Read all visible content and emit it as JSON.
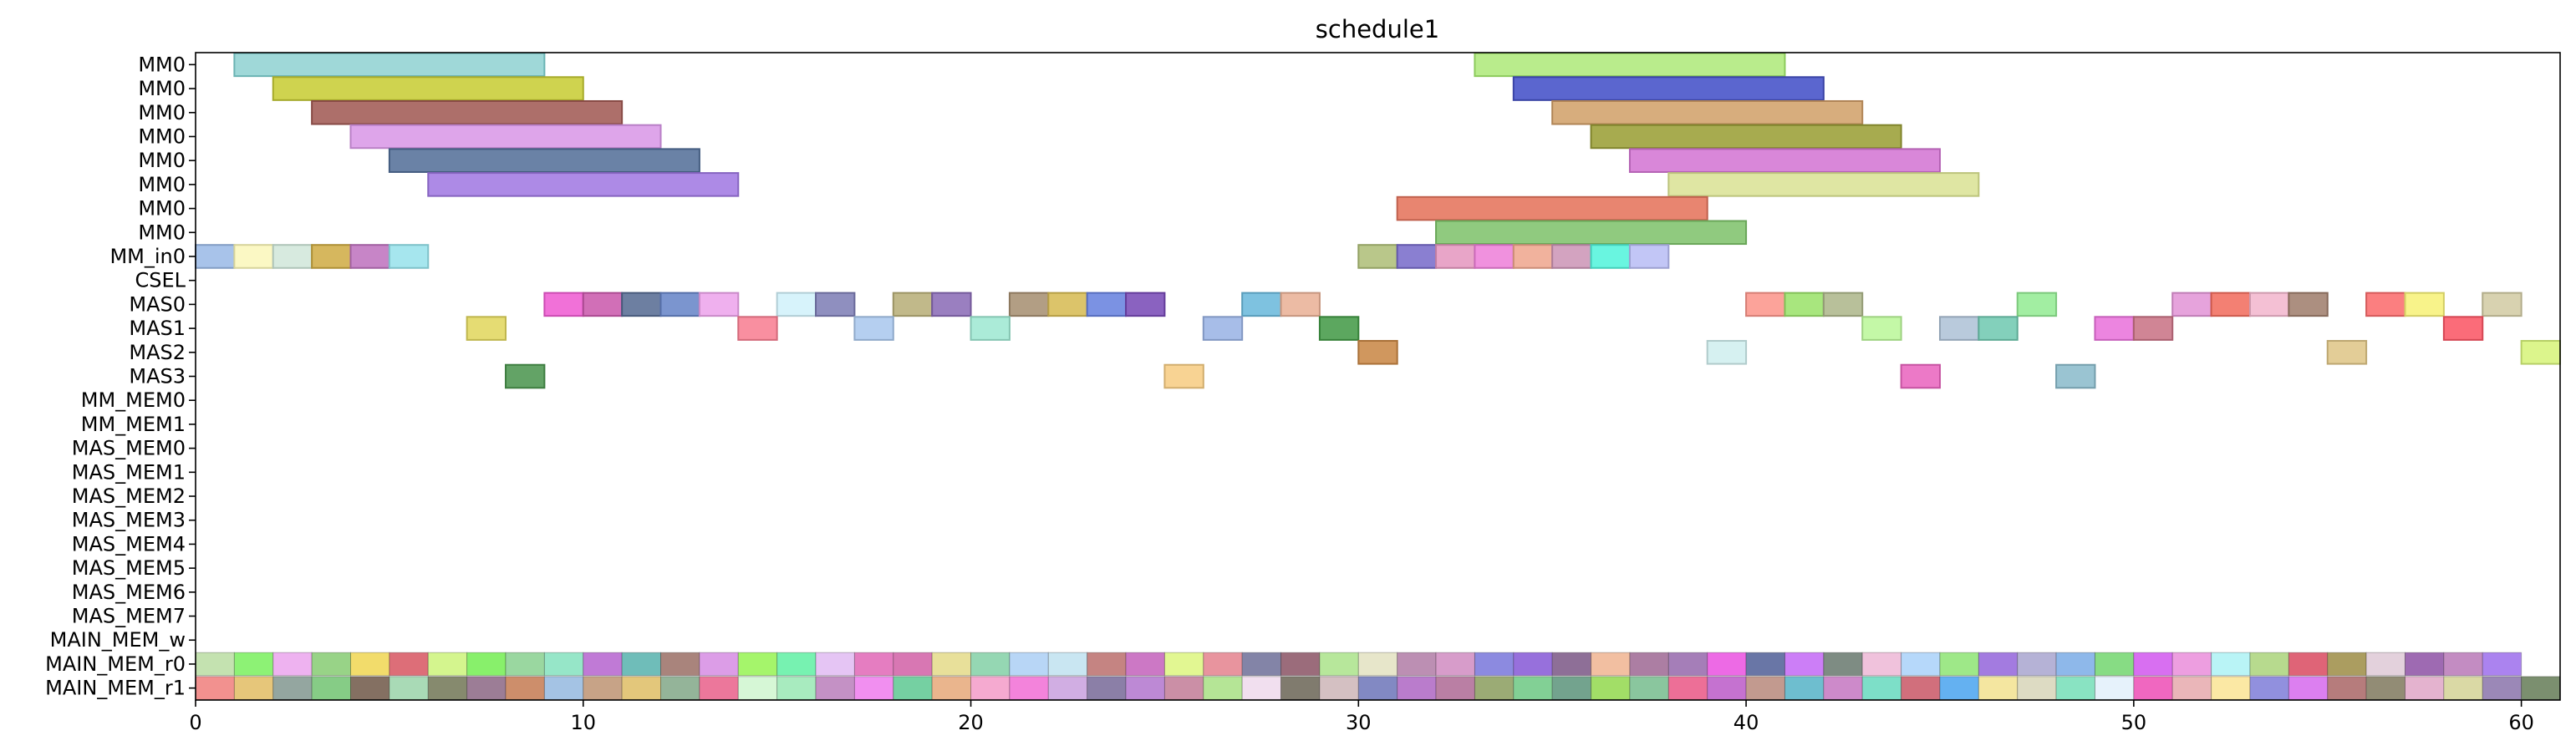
{
  "chart_data": {
    "type": "gantt",
    "title": "schedule1",
    "xlabel": "",
    "ylabel": "",
    "xlim": [
      0,
      61
    ],
    "x_ticks": [
      "0",
      "10",
      "20",
      "30",
      "40",
      "50",
      "60"
    ],
    "rows": [
      "MM0",
      "MM0",
      "MM0",
      "MM0",
      "MM0",
      "MM0",
      "MM0",
      "MM0",
      "MM_in0",
      "CSEL",
      "MAS0",
      "MAS1",
      "MAS2",
      "MAS3",
      "MM_MEM0",
      "MM_MEM1",
      "MAS_MEM0",
      "MAS_MEM1",
      "MAS_MEM2",
      "MAS_MEM3",
      "MAS_MEM4",
      "MAS_MEM5",
      "MAS_MEM6",
      "MAS_MEM7",
      "MAIN_MEM_w",
      "MAIN_MEM_r0",
      "MAIN_MEM_r1"
    ],
    "grid": false,
    "legend": "none",
    "tasks": [
      {
        "row": 0,
        "start": 1,
        "end": 9,
        "color": "#9fd8d8",
        "edge": "#6ab3b3"
      },
      {
        "row": 0,
        "start": 33,
        "end": 41,
        "color": "#b9ec8c",
        "edge": "#8ccb5c"
      },
      {
        "row": 1,
        "start": 2,
        "end": 10,
        "color": "#cfd34f",
        "edge": "#a6aa2a"
      },
      {
        "row": 1,
        "start": 34,
        "end": 42,
        "color": "#5b66cf",
        "edge": "#3a44a6"
      },
      {
        "row": 2,
        "start": 3,
        "end": 11,
        "color": "#ad6f6a",
        "edge": "#874a45"
      },
      {
        "row": 2,
        "start": 35,
        "end": 43,
        "color": "#d7ad7d",
        "edge": "#b08455"
      },
      {
        "row": 3,
        "start": 4,
        "end": 12,
        "color": "#dea5ea",
        "edge": "#b97fc6"
      },
      {
        "row": 3,
        "start": 36,
        "end": 44,
        "color": "#a7ab4f",
        "edge": "#80842c"
      },
      {
        "row": 4,
        "start": 5,
        "end": 13,
        "color": "#6a82a6",
        "edge": "#435c80"
      },
      {
        "row": 4,
        "start": 37,
        "end": 45,
        "color": "#d987d9",
        "edge": "#b462b4"
      },
      {
        "row": 5,
        "start": 6,
        "end": 14,
        "color": "#ad8ae6",
        "edge": "#8664c0"
      },
      {
        "row": 5,
        "start": 38,
        "end": 46,
        "color": "#dfe6a3",
        "edge": "#bcc47c"
      },
      {
        "row": 6,
        "start": 31,
        "end": 39,
        "color": "#e88570",
        "edge": "#c0604d"
      },
      {
        "row": 7,
        "start": 32,
        "end": 40,
        "color": "#90ca7f",
        "edge": "#69a658"
      },
      {
        "row": 8,
        "start": 0,
        "end": 1,
        "color": "#a8c3ea",
        "edge": "#829dc4"
      },
      {
        "row": 8,
        "start": 1,
        "end": 2,
        "color": "#fbf8c4",
        "edge": "#d6d39b"
      },
      {
        "row": 8,
        "start": 2,
        "end": 3,
        "color": "#d7eadf",
        "edge": "#afc4b8"
      },
      {
        "row": 8,
        "start": 3,
        "end": 4,
        "color": "#d6b75e",
        "edge": "#ae9036"
      },
      {
        "row": 8,
        "start": 4,
        "end": 5,
        "color": "#c785c7",
        "edge": "#a160a1"
      },
      {
        "row": 8,
        "start": 5,
        "end": 6,
        "color": "#a6e6ee",
        "edge": "#7ec1c9"
      },
      {
        "row": 8,
        "start": 30,
        "end": 31,
        "color": "#b9c78a",
        "edge": "#93a164"
      },
      {
        "row": 8,
        "start": 31,
        "end": 32,
        "color": "#8a7fd1",
        "edge": "#6459ab"
      },
      {
        "row": 8,
        "start": 32,
        "end": 33,
        "color": "#e8a5c8",
        "edge": "#c27fa2"
      },
      {
        "row": 8,
        "start": 33,
        "end": 34,
        "color": "#f091de",
        "edge": "#ca6bb8"
      },
      {
        "row": 8,
        "start": 34,
        "end": 35,
        "color": "#f1b29d",
        "edge": "#cb8c77"
      },
      {
        "row": 8,
        "start": 35,
        "end": 36,
        "color": "#d3a3c0",
        "edge": "#ad7d9a"
      },
      {
        "row": 8,
        "start": 36,
        "end": 37,
        "color": "#69f5e0",
        "edge": "#43cfba"
      },
      {
        "row": 8,
        "start": 37,
        "end": 38,
        "color": "#c2c6f6",
        "edge": "#9ca0d0"
      },
      {
        "row": 10,
        "start": 9,
        "end": 10,
        "color": "#f171d8",
        "edge": "#cb4bb2"
      },
      {
        "row": 10,
        "start": 10,
        "end": 11,
        "color": "#d16fb7",
        "edge": "#ab4991"
      },
      {
        "row": 10,
        "start": 11,
        "end": 12,
        "color": "#6d7fa1",
        "edge": "#47597b"
      },
      {
        "row": 10,
        "start": 12,
        "end": 13,
        "color": "#7b95cf",
        "edge": "#556fa9"
      },
      {
        "row": 10,
        "start": 13,
        "end": 14,
        "color": "#efb0ee",
        "edge": "#c98ac8"
      },
      {
        "row": 10,
        "start": 15,
        "end": 16,
        "color": "#d7f3fb",
        "edge": "#b1cdd5"
      },
      {
        "row": 10,
        "start": 16,
        "end": 17,
        "color": "#8f8fbf",
        "edge": "#696999"
      },
      {
        "row": 10,
        "start": 18,
        "end": 19,
        "color": "#c1b98a",
        "edge": "#9b9364"
      },
      {
        "row": 10,
        "start": 19,
        "end": 20,
        "color": "#9a7fc0",
        "edge": "#74599a"
      },
      {
        "row": 10,
        "start": 21,
        "end": 22,
        "color": "#b29e84",
        "edge": "#8c785e"
      },
      {
        "row": 10,
        "start": 22,
        "end": 23,
        "color": "#dcc46a",
        "edge": "#b69e44"
      },
      {
        "row": 10,
        "start": 23,
        "end": 24,
        "color": "#7b92e3",
        "edge": "#556cbd"
      },
      {
        "row": 10,
        "start": 24,
        "end": 25,
        "color": "#8a62c0",
        "edge": "#643c9a"
      },
      {
        "row": 10,
        "start": 27,
        "end": 28,
        "color": "#7ec2e0",
        "edge": "#589cba"
      },
      {
        "row": 10,
        "start": 28,
        "end": 29,
        "color": "#ecbba4",
        "edge": "#c6957e"
      },
      {
        "row": 10,
        "start": 40,
        "end": 41,
        "color": "#fca39a",
        "edge": "#d67d74"
      },
      {
        "row": 10,
        "start": 41,
        "end": 42,
        "color": "#a8e67e",
        "edge": "#82c058"
      },
      {
        "row": 10,
        "start": 42,
        "end": 43,
        "color": "#b8c09a",
        "edge": "#929a74"
      },
      {
        "row": 10,
        "start": 47,
        "end": 48,
        "color": "#a2eea2",
        "edge": "#7cc87c"
      },
      {
        "row": 10,
        "start": 51,
        "end": 52,
        "color": "#e6a3dc",
        "edge": "#c07db6"
      },
      {
        "row": 10,
        "start": 52,
        "end": 53,
        "color": "#f38073",
        "edge": "#cd5a4d"
      },
      {
        "row": 10,
        "start": 53,
        "end": 54,
        "color": "#f4c0d4",
        "edge": "#ce9aae"
      },
      {
        "row": 10,
        "start": 54,
        "end": 55,
        "color": "#ac8f80",
        "edge": "#86695a"
      },
      {
        "row": 10,
        "start": 56,
        "end": 57,
        "color": "#fb7f80",
        "edge": "#d5595a"
      },
      {
        "row": 10,
        "start": 57,
        "end": 58,
        "color": "#f8f38a",
        "edge": "#d2cd64"
      },
      {
        "row": 10,
        "start": 59,
        "end": 60,
        "color": "#d8d2b0",
        "edge": "#b2ac8a"
      },
      {
        "row": 11,
        "start": 7,
        "end": 8,
        "color": "#e5dc73",
        "edge": "#bfb64d"
      },
      {
        "row": 11,
        "start": 14,
        "end": 15,
        "color": "#f98fa0",
        "edge": "#d3697a"
      },
      {
        "row": 11,
        "start": 17,
        "end": 18,
        "color": "#b5cff0",
        "edge": "#8fa9ca"
      },
      {
        "row": 11,
        "start": 20,
        "end": 21,
        "color": "#abebd8",
        "edge": "#85c5b2"
      },
      {
        "row": 11,
        "start": 26,
        "end": 27,
        "color": "#a7bde8",
        "edge": "#8197c2"
      },
      {
        "row": 11,
        "start": 29,
        "end": 30,
        "color": "#5ca75f",
        "edge": "#368139"
      },
      {
        "row": 11,
        "start": 43,
        "end": 44,
        "color": "#c4f8a7",
        "edge": "#9ed281"
      },
      {
        "row": 11,
        "start": 45,
        "end": 46,
        "color": "#b9cadc",
        "edge": "#93a4b6"
      },
      {
        "row": 11,
        "start": 46,
        "end": 47,
        "color": "#83d0bb",
        "edge": "#5daa95"
      },
      {
        "row": 11,
        "start": 49,
        "end": 50,
        "color": "#ec85e0",
        "edge": "#c65fba"
      },
      {
        "row": 11,
        "start": 50,
        "end": 51,
        "color": "#d08595",
        "edge": "#aa5f6f"
      },
      {
        "row": 11,
        "start": 58,
        "end": 59,
        "color": "#fb6c79",
        "edge": "#d54653"
      },
      {
        "row": 12,
        "start": 30,
        "end": 31,
        "color": "#d0975e",
        "edge": "#aa7138"
      },
      {
        "row": 12,
        "start": 39,
        "end": 40,
        "color": "#d6f1f1",
        "edge": "#b0cbcb"
      },
      {
        "row": 12,
        "start": 55,
        "end": 56,
        "color": "#e3cd97",
        "edge": "#bda771"
      },
      {
        "row": 12,
        "start": 60,
        "end": 61,
        "color": "#dcf58c",
        "edge": "#b6cf66"
      },
      {
        "row": 13,
        "start": 8,
        "end": 9,
        "color": "#63a366",
        "edge": "#3d7d40"
      },
      {
        "row": 13,
        "start": 25,
        "end": 26,
        "color": "#f8d393",
        "edge": "#d2ad6d"
      },
      {
        "row": 13,
        "start": 44,
        "end": 45,
        "color": "#ec79c7",
        "edge": "#c653a1"
      },
      {
        "row": 13,
        "start": 48,
        "end": 49,
        "color": "#9ac4d2",
        "edge": "#749eac"
      }
    ],
    "memory_colors": {
      "MAIN_MEM_r0": [
        "#c4e2b0",
        "#8df275",
        "#eeb2f0",
        "#98d387",
        "#f2dc6b",
        "#dd6e78",
        "#d4f58e",
        "#88f06b",
        "#9ad7a0",
        "#96e6c8",
        "#c07ad6",
        "#6fbdb9",
        "#a9847c",
        "#dc9de7",
        "#a5f56b",
        "#77f2b1",
        "#e5c5f4",
        "#e57dc1",
        "#d877b3",
        "#e8e09a",
        "#95d7b3",
        "#b8d6f6",
        "#c9e6f2",
        "#c58482",
        "#cc78c5",
        "#e2f792",
        "#e8949e",
        "#8384a7",
        "#9b6c7b",
        "#b7e79b",
        "#e7e6ca",
        "#bc8fb3",
        "#d79cca",
        "#8c8ae0",
        "#9770dc",
        "#8e6f97",
        "#f2bfa1",
        "#ac7ea3",
        "#a57eb8",
        "#ed6ae5",
        "#6976a6",
        "#cc7ef7",
        "#7e8c83",
        "#f0c2dc",
        "#b6d8fa",
        "#9ee888",
        "#a37be0",
        "#b5b2d6",
        "#8eb8ea",
        "#87dc84",
        "#d86ff1",
        "#ed9ee0",
        "#b9f4f6",
        "#b7da8e",
        "#df6477",
        "#ab9d60",
        "#e3d1dc",
        "#9e6ab2",
        "#c38cc2",
        "#ab83ef"
      ],
      "MAIN_MEM_r1": [
        "#f2918f",
        "#e6c67a",
        "#94a6a0",
        "#86cc86",
        "#847062",
        "#a9dab6",
        "#868a6e",
        "#9c7d96",
        "#cd8e6b",
        "#a4c3e4",
        "#c7a387",
        "#e3c77b",
        "#94b499",
        "#ec779b",
        "#d6f7d6",
        "#a8ebbf",
        "#c491c5",
        "#f18ff0",
        "#75d0a2",
        "#eab58d",
        "#f5aad0",
        "#f383db",
        "#d1aee3",
        "#8b7fa7",
        "#bd89d5",
        "#cb8fa6",
        "#b5e596",
        "#f1dfef",
        "#807b6e",
        "#d4c0c2",
        "#8289c3",
        "#ba7ccc",
        "#ba7fa4",
        "#9bab75",
        "#82d095",
        "#73a38e",
        "#a2de67",
        "#8ac69e",
        "#ed6f97",
        "#c572d0",
        "#c29a8f",
        "#6ebecf",
        "#cd8aca",
        "#7ddfc8",
        "#d16f7c",
        "#64b1f1",
        "#f4e6a0",
        "#dddbc3",
        "#89e3c2",
        "#e6f2fb",
        "#f067c0",
        "#eab6b9",
        "#fbe8a4",
        "#9190de",
        "#dc7ff0",
        "#b67c7c",
        "#928c75",
        "#e4b3cf",
        "#dad9a5",
        "#9b88b7",
        "#7b8f6f"
      ]
    }
  }
}
